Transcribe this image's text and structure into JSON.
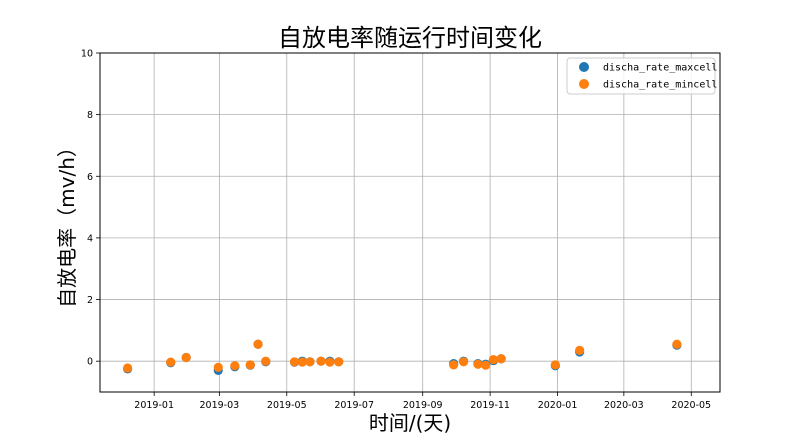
{
  "chart_data": {
    "type": "scatter",
    "title": "自放电率随运行时间变化",
    "xlabel": "时间/(天)",
    "ylabel": "自放电率（mv/h）",
    "ylim": [
      -1,
      10
    ],
    "xlim": [
      "2018-11-13",
      "2020-05-27"
    ],
    "grid": true,
    "legend_position": "top-right",
    "x_ticks": [
      "2019-01",
      "2019-03",
      "2019-05",
      "2019-07",
      "2019-09",
      "2019-11",
      "2020-01",
      "2020-03",
      "2020-05"
    ],
    "x_tick_dates": [
      "2019-01-01",
      "2019-03-01",
      "2019-05-01",
      "2019-07-01",
      "2019-09-01",
      "2019-11-01",
      "2020-01-01",
      "2020-03-01",
      "2020-05-01"
    ],
    "y_ticks": [
      0,
      2,
      4,
      6,
      8,
      10
    ],
    "series": [
      {
        "name": "discha_rate_maxcell",
        "color": "#1f77b4",
        "points": [
          {
            "x": "2018-12-08",
            "y": -0.25
          },
          {
            "x": "2019-01-16",
            "y": -0.05
          },
          {
            "x": "2019-01-30",
            "y": 0.12
          },
          {
            "x": "2019-02-28",
            "y": -0.3
          },
          {
            "x": "2019-03-15",
            "y": -0.18
          },
          {
            "x": "2019-03-29",
            "y": -0.13
          },
          {
            "x": "2019-04-05",
            "y": 0.55
          },
          {
            "x": "2019-04-12",
            "y": -0.02
          },
          {
            "x": "2019-05-08",
            "y": -0.03
          },
          {
            "x": "2019-05-15",
            "y": 0.0
          },
          {
            "x": "2019-05-22",
            "y": -0.02
          },
          {
            "x": "2019-06-01",
            "y": 0.0
          },
          {
            "x": "2019-06-09",
            "y": 0.0
          },
          {
            "x": "2019-06-17",
            "y": -0.02
          },
          {
            "x": "2019-09-29",
            "y": -0.08
          },
          {
            "x": "2019-10-08",
            "y": 0.0
          },
          {
            "x": "2019-10-21",
            "y": -0.08
          },
          {
            "x": "2019-10-28",
            "y": -0.1
          },
          {
            "x": "2019-11-04",
            "y": 0.02
          },
          {
            "x": "2019-11-11",
            "y": 0.08
          },
          {
            "x": "2019-12-30",
            "y": -0.15
          },
          {
            "x": "2020-01-21",
            "y": 0.3
          },
          {
            "x": "2020-04-18",
            "y": 0.52
          }
        ]
      },
      {
        "name": "discha_rate_mincell",
        "color": "#ff7f0e",
        "points": [
          {
            "x": "2018-12-08",
            "y": -0.22
          },
          {
            "x": "2019-01-16",
            "y": -0.03
          },
          {
            "x": "2019-01-30",
            "y": 0.12
          },
          {
            "x": "2019-02-28",
            "y": -0.2
          },
          {
            "x": "2019-03-15",
            "y": -0.15
          },
          {
            "x": "2019-03-29",
            "y": -0.12
          },
          {
            "x": "2019-04-05",
            "y": 0.55
          },
          {
            "x": "2019-04-12",
            "y": 0.0
          },
          {
            "x": "2019-05-08",
            "y": -0.02
          },
          {
            "x": "2019-05-15",
            "y": -0.03
          },
          {
            "x": "2019-05-22",
            "y": -0.02
          },
          {
            "x": "2019-06-01",
            "y": 0.0
          },
          {
            "x": "2019-06-09",
            "y": -0.03
          },
          {
            "x": "2019-06-17",
            "y": -0.02
          },
          {
            "x": "2019-09-29",
            "y": -0.12
          },
          {
            "x": "2019-10-08",
            "y": -0.02
          },
          {
            "x": "2019-10-21",
            "y": -0.1
          },
          {
            "x": "2019-10-28",
            "y": -0.13
          },
          {
            "x": "2019-11-04",
            "y": 0.05
          },
          {
            "x": "2019-11-11",
            "y": 0.08
          },
          {
            "x": "2019-12-30",
            "y": -0.12
          },
          {
            "x": "2020-01-21",
            "y": 0.35
          },
          {
            "x": "2020-04-18",
            "y": 0.55
          }
        ]
      }
    ]
  }
}
